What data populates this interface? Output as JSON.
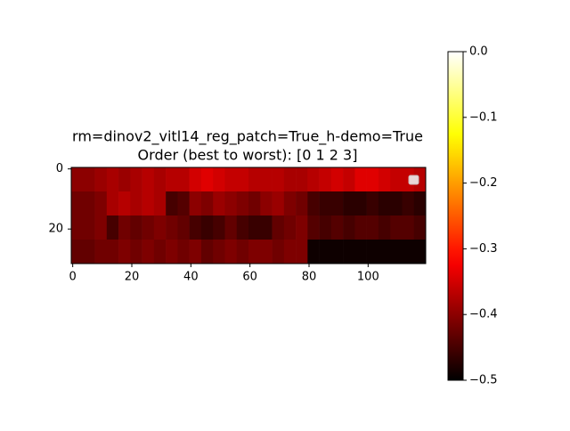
{
  "chart_data": {
    "type": "heatmap",
    "title": [
      "rm=dinov2_vitl14_reg_patch=True_h-demo=True",
      "Order (best to worst): [0 1 2 3]"
    ],
    "colormap": "hot",
    "xlim": [
      -0.5,
      119.5
    ],
    "ylim": [
      31.5,
      -0.5
    ],
    "xticks": [
      0,
      20,
      40,
      60,
      80,
      100
    ],
    "yticks": [
      0,
      20
    ],
    "clim": [
      -0.5,
      0
    ],
    "cticks": [
      {
        "value": 0,
        "label": "0.0"
      },
      {
        "value": -0.1,
        "label": "−0.1"
      },
      {
        "value": -0.2,
        "label": "−0.2"
      },
      {
        "value": -0.3,
        "label": "−0.3"
      },
      {
        "value": -0.4,
        "label": "−0.4"
      },
      {
        "value": -0.5,
        "label": "−0.5"
      }
    ],
    "z": [
      [
        -0.4,
        -0.4,
        -0.39,
        -0.38,
        -0.39,
        -0.38,
        -0.37,
        -0.38,
        -0.37,
        -0.37,
        -0.35,
        -0.34,
        -0.35,
        -0.36,
        -0.36,
        -0.37,
        -0.37,
        -0.37,
        -0.38,
        -0.38,
        -0.37,
        -0.36,
        -0.35,
        -0.36,
        -0.34,
        -0.34,
        -0.35,
        -0.36,
        -0.36,
        -0.37
      ],
      [
        -0.42,
        -0.42,
        -0.41,
        -0.38,
        -0.37,
        -0.38,
        -0.37,
        -0.38,
        -0.45,
        -0.44,
        -0.4,
        -0.41,
        -0.39,
        -0.4,
        -0.41,
        -0.42,
        -0.4,
        -0.39,
        -0.41,
        -0.42,
        -0.45,
        -0.46,
        -0.46,
        -0.47,
        -0.47,
        -0.46,
        -0.47,
        -0.47,
        -0.46,
        -0.47
      ],
      [
        -0.42,
        -0.42,
        -0.41,
        -0.45,
        -0.42,
        -0.43,
        -0.42,
        -0.41,
        -0.42,
        -0.43,
        -0.45,
        -0.46,
        -0.45,
        -0.43,
        -0.45,
        -0.46,
        -0.46,
        -0.43,
        -0.42,
        -0.41,
        -0.44,
        -0.45,
        -0.44,
        -0.45,
        -0.44,
        -0.44,
        -0.45,
        -0.44,
        -0.44,
        -0.45
      ],
      [
        -0.43,
        -0.43,
        -0.42,
        -0.42,
        -0.41,
        -0.42,
        -0.41,
        -0.42,
        -0.41,
        -0.42,
        -0.41,
        -0.43,
        -0.42,
        -0.41,
        -0.42,
        -0.41,
        -0.41,
        -0.42,
        -0.41,
        -0.41,
        -0.49,
        -0.49,
        -0.49,
        -0.49,
        -0.49,
        -0.49,
        -0.49,
        -0.49,
        -0.49,
        -0.49
      ]
    ]
  }
}
